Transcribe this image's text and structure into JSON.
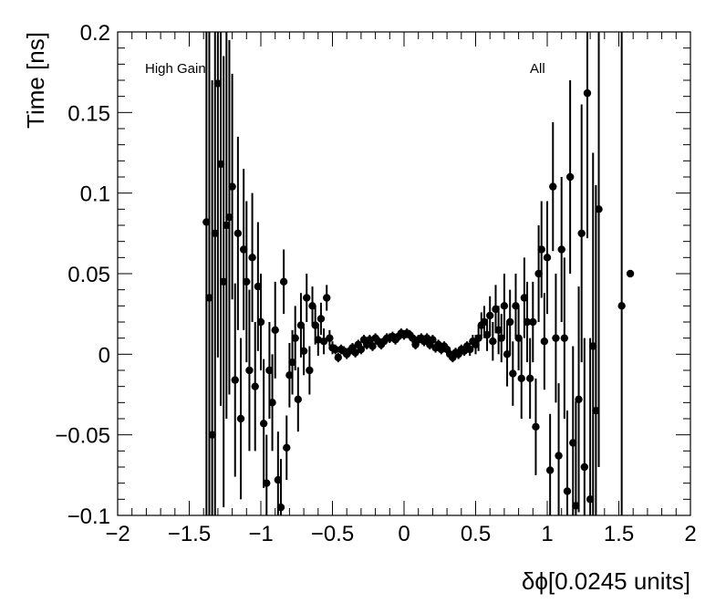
{
  "chart_data": {
    "type": "scatter",
    "xlabel": "δϕ[0.0245 units]",
    "ylabel": "Time [ns]",
    "xlim": [
      -2,
      2
    ],
    "ylim": [
      -0.1,
      0.2
    ],
    "x_ticks": [
      {
        "value": -2,
        "label": "−2"
      },
      {
        "value": -1.5,
        "label": "−1.5"
      },
      {
        "value": -1,
        "label": "−1"
      },
      {
        "value": -0.5,
        "label": "−0.5"
      },
      {
        "value": 0,
        "label": "0"
      },
      {
        "value": 0.5,
        "label": "0.5"
      },
      {
        "value": 1,
        "label": "1"
      },
      {
        "value": 1.5,
        "label": "1.5"
      },
      {
        "value": 2,
        "label": "2"
      }
    ],
    "y_ticks": [
      {
        "value": -0.1,
        "label": "−0.1"
      },
      {
        "value": -0.05,
        "label": "−0.05"
      },
      {
        "value": 0,
        "label": "0"
      },
      {
        "value": 0.05,
        "label": "0.05"
      },
      {
        "value": 0.1,
        "label": "0.1"
      },
      {
        "value": 0.15,
        "label": "0.15"
      },
      {
        "value": 0.2,
        "label": "0.2"
      }
    ],
    "annotations": {
      "left": "High Gain",
      "right": "All"
    },
    "marker_color": "#000000",
    "series": [
      {
        "points": [
          {
            "x": -1.38,
            "y": 0.082,
            "err": 0.26
          },
          {
            "x": -1.36,
            "y": 0.035,
            "err": 0.24
          },
          {
            "x": -1.34,
            "y": -0.05,
            "err": 0.22
          },
          {
            "x": -1.32,
            "y": 0.075,
            "err": 0.2
          },
          {
            "x": -1.3,
            "y": 0.168,
            "err": 0.17
          },
          {
            "x": -1.28,
            "y": 0.118,
            "err": 0.15
          },
          {
            "x": -1.26,
            "y": 0.045,
            "err": 0.14
          },
          {
            "x": -1.24,
            "y": 0.08,
            "err": 0.12
          },
          {
            "x": -1.22,
            "y": 0.085,
            "err": 0.11
          },
          {
            "x": -1.2,
            "y": 0.104,
            "err": 0.07
          },
          {
            "x": -1.18,
            "y": -0.016,
            "err": 0.06
          },
          {
            "x": -1.16,
            "y": 0.075,
            "err": 0.06
          },
          {
            "x": -1.14,
            "y": -0.04,
            "err": 0.05
          },
          {
            "x": -1.12,
            "y": 0.065,
            "err": 0.05
          },
          {
            "x": -1.1,
            "y": 0.045,
            "err": 0.05
          },
          {
            "x": -1.08,
            "y": -0.01,
            "err": 0.05
          },
          {
            "x": -1.06,
            "y": 0.06,
            "err": 0.04
          },
          {
            "x": -1.04,
            "y": -0.02,
            "err": 0.04
          },
          {
            "x": -1.02,
            "y": 0.042,
            "err": 0.04
          },
          {
            "x": -1.0,
            "y": 0.02,
            "err": 0.03
          },
          {
            "x": -0.98,
            "y": -0.043,
            "err": 0.04
          },
          {
            "x": -0.96,
            "y": -0.08,
            "err": 0.03
          },
          {
            "x": -0.94,
            "y": -0.01,
            "err": 0.03
          },
          {
            "x": -0.92,
            "y": -0.03,
            "err": 0.03
          },
          {
            "x": -0.9,
            "y": 0.015,
            "err": 0.03
          },
          {
            "x": -0.88,
            "y": -0.078,
            "err": 0.03
          },
          {
            "x": -0.86,
            "y": -0.095,
            "err": 0.03
          },
          {
            "x": -0.84,
            "y": 0.045,
            "err": 0.02
          },
          {
            "x": -0.82,
            "y": -0.058,
            "err": 0.02
          },
          {
            "x": -0.8,
            "y": -0.013,
            "err": 0.02
          },
          {
            "x": -0.78,
            "y": -0.005,
            "err": 0.02
          },
          {
            "x": -0.76,
            "y": 0.01,
            "err": 0.02
          },
          {
            "x": -0.74,
            "y": -0.028,
            "err": 0.02
          },
          {
            "x": -0.72,
            "y": 0.018,
            "err": 0.02
          },
          {
            "x": -0.7,
            "y": 0.002,
            "err": 0.015
          },
          {
            "x": -0.68,
            "y": 0.035,
            "err": 0.015
          },
          {
            "x": -0.66,
            "y": -0.01,
            "err": 0.015
          },
          {
            "x": -0.64,
            "y": 0.03,
            "err": 0.012
          },
          {
            "x": -0.62,
            "y": 0.018,
            "err": 0.012
          },
          {
            "x": -0.6,
            "y": 0.009,
            "err": 0.01
          },
          {
            "x": -0.58,
            "y": 0.022,
            "err": 0.01
          },
          {
            "x": -0.56,
            "y": 0.008,
            "err": 0.008
          },
          {
            "x": -0.54,
            "y": 0.035,
            "err": 0.008
          },
          {
            "x": -0.52,
            "y": 0.01,
            "err": 0.005
          },
          {
            "x": -0.5,
            "y": 0.004,
            "err": 0.004
          },
          {
            "x": -0.48,
            "y": 0.003,
            "err": 0.003
          },
          {
            "x": -0.46,
            "y": -0.002,
            "err": 0.003
          },
          {
            "x": -0.44,
            "y": 0.003,
            "err": 0.003
          },
          {
            "x": -0.42,
            "y": 0.002,
            "err": 0.003
          },
          {
            "x": -0.4,
            "y": 0.0,
            "err": 0.003
          },
          {
            "x": -0.38,
            "y": 0.002,
            "err": 0.003
          },
          {
            "x": -0.36,
            "y": 0.004,
            "err": 0.003
          },
          {
            "x": -0.34,
            "y": 0.001,
            "err": 0.003
          },
          {
            "x": -0.32,
            "y": 0.006,
            "err": 0.003
          },
          {
            "x": -0.3,
            "y": 0.003,
            "err": 0.003
          },
          {
            "x": -0.28,
            "y": 0.009,
            "err": 0.003
          },
          {
            "x": -0.26,
            "y": 0.006,
            "err": 0.003
          },
          {
            "x": -0.24,
            "y": 0.009,
            "err": 0.003
          },
          {
            "x": -0.22,
            "y": 0.005,
            "err": 0.003
          },
          {
            "x": -0.2,
            "y": 0.01,
            "err": 0.003
          },
          {
            "x": -0.18,
            "y": 0.008,
            "err": 0.003
          },
          {
            "x": -0.16,
            "y": 0.006,
            "err": 0.003
          },
          {
            "x": -0.14,
            "y": 0.008,
            "err": 0.003
          },
          {
            "x": -0.12,
            "y": 0.01,
            "err": 0.003
          },
          {
            "x": -0.1,
            "y": 0.01,
            "err": 0.003
          },
          {
            "x": -0.08,
            "y": 0.011,
            "err": 0.003
          },
          {
            "x": -0.06,
            "y": 0.009,
            "err": 0.003
          },
          {
            "x": -0.04,
            "y": 0.011,
            "err": 0.003
          },
          {
            "x": -0.02,
            "y": 0.013,
            "err": 0.003
          },
          {
            "x": 0.0,
            "y": 0.012,
            "err": 0.003
          },
          {
            "x": 0.02,
            "y": 0.013,
            "err": 0.003
          },
          {
            "x": 0.04,
            "y": 0.012,
            "err": 0.003
          },
          {
            "x": 0.06,
            "y": 0.01,
            "err": 0.003
          },
          {
            "x": 0.08,
            "y": 0.006,
            "err": 0.003
          },
          {
            "x": 0.1,
            "y": 0.009,
            "err": 0.003
          },
          {
            "x": 0.12,
            "y": 0.01,
            "err": 0.003
          },
          {
            "x": 0.14,
            "y": 0.008,
            "err": 0.003
          },
          {
            "x": 0.16,
            "y": 0.01,
            "err": 0.003
          },
          {
            "x": 0.18,
            "y": 0.006,
            "err": 0.003
          },
          {
            "x": 0.2,
            "y": 0.009,
            "err": 0.003
          },
          {
            "x": 0.22,
            "y": 0.004,
            "err": 0.003
          },
          {
            "x": 0.24,
            "y": 0.006,
            "err": 0.003
          },
          {
            "x": 0.26,
            "y": 0.003,
            "err": 0.003
          },
          {
            "x": 0.28,
            "y": 0.005,
            "err": 0.003
          },
          {
            "x": 0.3,
            "y": 0.003,
            "err": 0.003
          },
          {
            "x": 0.32,
            "y": 0.0,
            "err": 0.003
          },
          {
            "x": 0.34,
            "y": -0.002,
            "err": 0.003
          },
          {
            "x": 0.36,
            "y": 0.001,
            "err": 0.003
          },
          {
            "x": 0.38,
            "y": 0.0,
            "err": 0.003
          },
          {
            "x": 0.4,
            "y": 0.003,
            "err": 0.003
          },
          {
            "x": 0.42,
            "y": 0.002,
            "err": 0.003
          },
          {
            "x": 0.44,
            "y": 0.005,
            "err": 0.003
          },
          {
            "x": 0.46,
            "y": 0.003,
            "err": 0.004
          },
          {
            "x": 0.48,
            "y": 0.008,
            "err": 0.004
          },
          {
            "x": 0.5,
            "y": 0.006,
            "err": 0.006
          },
          {
            "x": 0.52,
            "y": 0.01,
            "err": 0.008
          },
          {
            "x": 0.54,
            "y": 0.018,
            "err": 0.008
          },
          {
            "x": 0.56,
            "y": 0.02,
            "err": 0.01
          },
          {
            "x": 0.58,
            "y": 0.012,
            "err": 0.01
          },
          {
            "x": 0.6,
            "y": 0.024,
            "err": 0.012
          },
          {
            "x": 0.62,
            "y": 0.008,
            "err": 0.012
          },
          {
            "x": 0.64,
            "y": 0.028,
            "err": 0.015
          },
          {
            "x": 0.66,
            "y": 0.015,
            "err": 0.015
          },
          {
            "x": 0.68,
            "y": 0.01,
            "err": 0.015
          },
          {
            "x": 0.7,
            "y": 0.03,
            "err": 0.02
          },
          {
            "x": 0.72,
            "y": 0.0,
            "err": 0.02
          },
          {
            "x": 0.74,
            "y": 0.02,
            "err": 0.02
          },
          {
            "x": 0.76,
            "y": -0.012,
            "err": 0.02
          },
          {
            "x": 0.78,
            "y": 0.03,
            "err": 0.02
          },
          {
            "x": 0.8,
            "y": 0.01,
            "err": 0.02
          },
          {
            "x": 0.82,
            "y": -0.015,
            "err": 0.025
          },
          {
            "x": 0.84,
            "y": 0.035,
            "err": 0.025
          },
          {
            "x": 0.86,
            "y": 0.02,
            "err": 0.025
          },
          {
            "x": 0.88,
            "y": -0.015,
            "err": 0.025
          },
          {
            "x": 0.9,
            "y": 0.02,
            "err": 0.025
          },
          {
            "x": 0.92,
            "y": -0.045,
            "err": 0.03
          },
          {
            "x": 0.94,
            "y": 0.05,
            "err": 0.03
          },
          {
            "x": 0.96,
            "y": 0.065,
            "err": 0.03
          },
          {
            "x": 0.98,
            "y": 0.008,
            "err": 0.03
          },
          {
            "x": 1.0,
            "y": 0.06,
            "err": 0.035
          },
          {
            "x": 1.02,
            "y": -0.072,
            "err": 0.035
          },
          {
            "x": 1.04,
            "y": 0.104,
            "err": 0.04
          },
          {
            "x": 1.06,
            "y": 0.01,
            "err": 0.04
          },
          {
            "x": 1.08,
            "y": -0.063,
            "err": 0.045
          },
          {
            "x": 1.1,
            "y": 0.065,
            "err": 0.045
          },
          {
            "x": 1.12,
            "y": 0.01,
            "err": 0.05
          },
          {
            "x": 1.14,
            "y": -0.085,
            "err": 0.05
          },
          {
            "x": 1.16,
            "y": 0.11,
            "err": 0.06
          },
          {
            "x": 1.18,
            "y": -0.055,
            "err": 0.06
          },
          {
            "x": 1.2,
            "y": -0.094,
            "err": 0.065
          },
          {
            "x": 1.22,
            "y": -0.028,
            "err": 0.07
          },
          {
            "x": 1.24,
            "y": 0.075,
            "err": 0.08
          },
          {
            "x": 1.26,
            "y": -0.07,
            "err": 0.08
          },
          {
            "x": 1.28,
            "y": 0.162,
            "err": 0.09
          },
          {
            "x": 1.3,
            "y": -0.09,
            "err": 0.1
          },
          {
            "x": 1.32,
            "y": 0.005,
            "err": 0.12
          },
          {
            "x": 1.34,
            "y": -0.035,
            "err": 0.14
          },
          {
            "x": 1.36,
            "y": 0.09,
            "err": 0.16
          },
          {
            "x": 1.52,
            "y": 0.03,
            "err": 0.2
          },
          {
            "x": 1.58,
            "y": 0.05,
            "err": 0
          }
        ]
      }
    ]
  }
}
